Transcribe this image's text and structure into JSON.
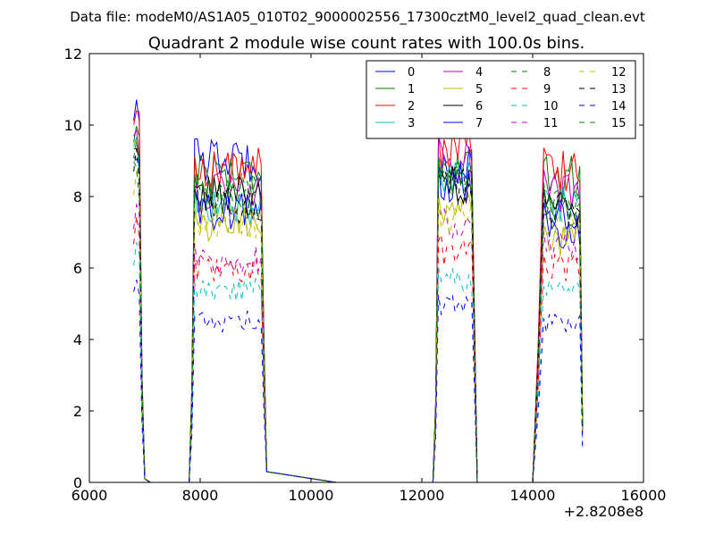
{
  "suptitle": "Data file: modeM0/AS1A05_010T02_9000002556_17300cztM0_level2_quad_clean.evt",
  "chart_data": {
    "type": "line",
    "title": "Quadrant 2 module wise count rates with 100.0s bins.",
    "xlabel": "",
    "ylabel": "",
    "xlim": [
      6000,
      16000
    ],
    "ylim": [
      0,
      12
    ],
    "xticks": [
      6000,
      8000,
      10000,
      12000,
      14000,
      16000
    ],
    "xtick_labels": [
      "6000",
      "8000",
      "10000",
      "12000",
      "14000",
      "16000"
    ],
    "yticks": [
      0,
      2,
      4,
      6,
      8,
      10,
      12
    ],
    "ytick_labels": [
      "0",
      "2",
      "4",
      "6",
      "8",
      "10",
      "12"
    ],
    "x_offset_label": "+2.8208e8",
    "grid": false,
    "legend_position": "top-right",
    "legend_columns": 4,
    "segments": [
      {
        "start": 6800,
        "n": 3
      },
      {
        "start": 7900,
        "n": 25
      },
      {
        "start": 12300,
        "n": 13
      },
      {
        "start": 14200,
        "n": 14
      }
    ],
    "series": [
      {
        "name": "0",
        "color": "#0000ff",
        "dash": "solid",
        "levels": [
          10.2,
          9.0,
          8.8,
          7.0
        ]
      },
      {
        "name": "1",
        "color": "#008000",
        "dash": "solid",
        "levels": [
          9.5,
          8.7,
          8.7,
          8.6
        ]
      },
      {
        "name": "2",
        "color": "#ff0000",
        "dash": "solid",
        "levels": [
          9.9,
          8.8,
          9.3,
          8.7
        ]
      },
      {
        "name": "3",
        "color": "#00bfbf",
        "dash": "solid",
        "levels": [
          9.2,
          7.7,
          8.5,
          7.8
        ]
      },
      {
        "name": "4",
        "color": "#bf00bf",
        "dash": "solid",
        "levels": [
          9.4,
          8.1,
          8.9,
          8.1
        ]
      },
      {
        "name": "5",
        "color": "#bfbf00",
        "dash": "solid",
        "levels": [
          9.1,
          7.2,
          7.7,
          6.8
        ]
      },
      {
        "name": "6",
        "color": "#000000",
        "dash": "solid",
        "levels": [
          8.9,
          8.0,
          8.4,
          7.6
        ]
      },
      {
        "name": "7",
        "color": "#0000ff",
        "dash": "solid",
        "levels": [
          8.6,
          7.6,
          8.4,
          7.4
        ]
      },
      {
        "name": "8",
        "color": "#008000",
        "dash": "dashed",
        "levels": [
          8.4,
          8.1,
          8.2,
          7.7
        ]
      },
      {
        "name": "9",
        "color": "#ff0000",
        "dash": "dashed",
        "levels": [
          7.1,
          6.0,
          6.5,
          6.0
        ]
      },
      {
        "name": "10",
        "color": "#00bfbf",
        "dash": "dashed",
        "levels": [
          6.4,
          5.4,
          5.7,
          5.3
        ]
      },
      {
        "name": "11",
        "color": "#bf00bf",
        "dash": "dashed",
        "levels": [
          7.4,
          6.2,
          7.2,
          6.6
        ]
      },
      {
        "name": "12",
        "color": "#bfbf00",
        "dash": "dashed",
        "levels": [
          8.3,
          7.3,
          7.4,
          7.1
        ]
      },
      {
        "name": "13",
        "color": "#000000",
        "dash": "dashed",
        "levels": [
          8.9,
          7.8,
          8.3,
          7.7
        ]
      },
      {
        "name": "14",
        "color": "#0000ff",
        "dash": "dashed",
        "levels": [
          5.4,
          4.5,
          5.0,
          4.4
        ]
      },
      {
        "name": "15",
        "color": "#008000",
        "dash": "dashed",
        "levels": [
          9.1,
          7.9,
          8.5,
          7.8
        ]
      }
    ]
  }
}
